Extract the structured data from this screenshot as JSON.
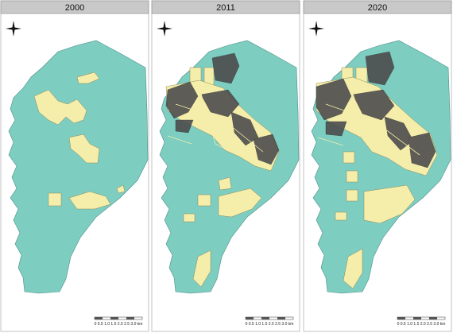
{
  "panels": [
    {
      "title": "2000",
      "scale_label": "0 0.5 1.0 1.5 2.0 2.5 3.0 km"
    },
    {
      "title": "2011",
      "scale_label": "0 0.5 1.0 1.5 2.0 2.5 3.0 km"
    },
    {
      "title": "2020",
      "scale_label": "0 0.5 1.0 1.5 2.0 2.5 3.0 km"
    }
  ]
}
